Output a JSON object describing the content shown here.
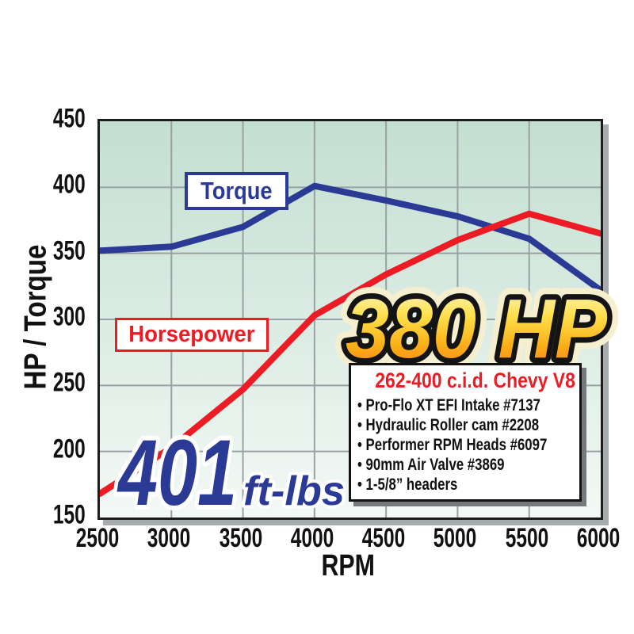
{
  "chart_data": {
    "type": "line",
    "title": "",
    "xlabel": "RPM",
    "ylabel": "HP / Torque",
    "xlim": [
      2500,
      6000
    ],
    "ylim": [
      150,
      450
    ],
    "xticks": [
      2500,
      3000,
      3500,
      4000,
      4500,
      5000,
      5500,
      6000
    ],
    "yticks": [
      450,
      400,
      350,
      300,
      250,
      200,
      150
    ],
    "grid": true,
    "legend_position": "on-chart label boxes",
    "x": [
      2500,
      3000,
      3500,
      4000,
      4500,
      5000,
      5500,
      6000
    ],
    "series": [
      {
        "name": "Torque",
        "color": "#2b3a94",
        "values": [
          352,
          355,
          370,
          401,
          390,
          378,
          361,
          322
        ]
      },
      {
        "name": "Horsepower",
        "color": "#ed1c24",
        "values": [
          168,
          203,
          247,
          303,
          334,
          360,
          380,
          365
        ]
      }
    ]
  },
  "curve_labels": {
    "torque": "Torque",
    "horsepower": "Horsepower"
  },
  "callouts": {
    "hp_peak": "380 HP",
    "torque_peak_value": "401",
    "torque_peak_unit": "ft-lbs"
  },
  "spec_box": {
    "title": "262-400 c.i.d. Chevy V8",
    "items": [
      "Pro-Flo XT EFI Intake #7137",
      "Hydraulic Roller cam #2208",
      "Performer RPM Heads #6097",
      "90mm Air Valve #3869",
      "1-5/8” headers"
    ]
  },
  "colors": {
    "torque_line": "#2b3a94",
    "horsepower_line": "#ed1c24",
    "plot_bg_top": "#c3dfd1",
    "plot_bg_bottom": "#f3f9f6",
    "gridline": "#9aa1a5",
    "plot_border": "#1c1c1c",
    "plot_shadow": "#a6abae",
    "spec_shadow": "#75797d",
    "gold_top": "#fdf8d8",
    "gold_mid": "#ffe14d",
    "gold_deep": "#fbaf17",
    "gold_bottom": "#f47d20",
    "halo_cream": "#f5efcf",
    "axis_text": "#111111"
  }
}
